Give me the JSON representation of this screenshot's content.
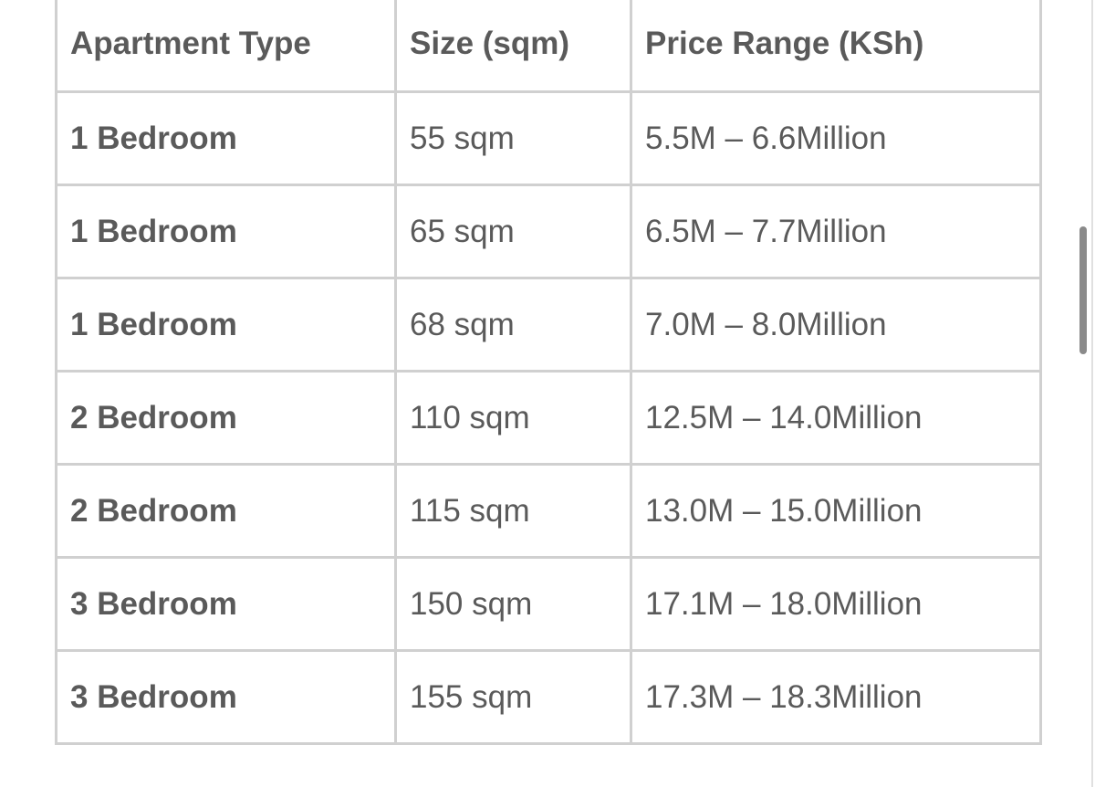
{
  "table": {
    "headers": [
      "Apartment Type",
      "Size (sqm)",
      "Price Range (KSh)"
    ],
    "rows": [
      [
        "1 Bedroom",
        "55 sqm",
        "5.5M – 6.6Million"
      ],
      [
        "1 Bedroom",
        "65 sqm",
        "6.5M – 7.7Million"
      ],
      [
        "1 Bedroom",
        "68 sqm",
        "7.0M – 8.0Million"
      ],
      [
        "2 Bedroom",
        "110 sqm",
        "12.5M – 14.0Million"
      ],
      [
        "2 Bedroom",
        "115 sqm",
        "13.0M – 15.0Million"
      ],
      [
        "3 Bedroom",
        "150 sqm",
        "17.1M – 18.0Million"
      ],
      [
        "3 Bedroom",
        "155 sqm",
        "17.3M – 18.3Million"
      ]
    ]
  },
  "colors": {
    "text": "#5a5a5a",
    "border": "#d0d0d0",
    "scrollbar": "#8a8a8a"
  }
}
